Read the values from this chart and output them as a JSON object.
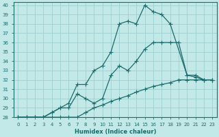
{
  "xlabel": "Humidex (Indice chaleur)",
  "ylabel": "",
  "bg_color": "#c2e8e8",
  "grid_color": "#9ecece",
  "line_color": "#1a6b6b",
  "xlim": [
    -0.5,
    23.5
  ],
  "ylim": [
    28,
    40.3
  ],
  "xticks": [
    0,
    1,
    2,
    3,
    4,
    5,
    6,
    7,
    8,
    9,
    10,
    11,
    12,
    13,
    14,
    15,
    16,
    17,
    18,
    19,
    20,
    21,
    22,
    23
  ],
  "yticks": [
    28,
    29,
    30,
    31,
    32,
    33,
    34,
    35,
    36,
    37,
    38,
    39,
    40
  ],
  "line1_x": [
    0,
    1,
    2,
    3,
    4,
    5,
    6,
    7,
    8,
    9,
    10,
    11,
    12,
    13,
    14,
    15,
    16,
    17,
    18,
    20,
    21,
    22,
    23
  ],
  "line1_y": [
    28,
    28,
    28,
    28,
    28.5,
    29,
    29.5,
    31.5,
    31.5,
    33,
    33.5,
    35,
    38,
    38.3,
    38,
    40,
    39.3,
    39,
    38,
    32.5,
    32.5,
    32,
    32
  ],
  "line2_x": [
    0,
    1,
    2,
    3,
    4,
    5,
    6,
    7,
    8,
    9,
    10,
    11,
    12,
    13,
    14,
    15,
    16,
    17,
    18,
    19,
    20,
    21,
    22,
    23
  ],
  "line2_y": [
    28,
    28,
    28,
    28,
    28.5,
    29,
    29,
    30.5,
    30,
    29.5,
    30,
    32.5,
    33.5,
    33,
    34,
    35.3,
    36,
    36,
    36,
    36,
    32.5,
    32.3,
    32,
    32
  ],
  "line3_x": [
    0,
    1,
    2,
    3,
    4,
    5,
    6,
    7,
    8,
    9,
    10,
    11,
    12,
    13,
    14,
    15,
    16,
    17,
    18,
    19,
    20,
    21,
    22,
    23
  ],
  "line3_y": [
    28,
    28,
    28,
    28,
    28,
    28,
    28,
    28,
    28.5,
    29,
    29.3,
    29.7,
    30,
    30.3,
    30.7,
    31,
    31.3,
    31.5,
    31.7,
    32,
    32,
    32,
    32,
    32
  ]
}
